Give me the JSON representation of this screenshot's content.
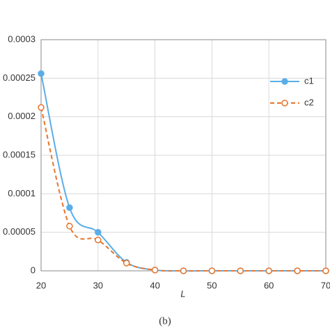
{
  "chart_data": {
    "type": "line",
    "caption": "(b)",
    "x_label": "L",
    "x": [
      20,
      25,
      30,
      35,
      40,
      45,
      50,
      55,
      60,
      65,
      70
    ],
    "series": [
      {
        "name": "c1",
        "color": "#5aaee8",
        "marker": "filled",
        "dash": false,
        "values": [
          0.000256,
          8.2e-05,
          5e-05,
          1.1e-05,
          1e-06,
          0,
          0,
          0,
          0,
          0,
          0
        ]
      },
      {
        "name": "c2",
        "color": "#e8742a",
        "marker": "open",
        "dash": true,
        "values": [
          0.000212,
          5.8e-05,
          4e-05,
          1e-05,
          1e-06,
          0,
          0,
          0,
          0,
          0,
          0
        ]
      }
    ],
    "xlim": [
      20,
      70
    ],
    "xticks": [
      20,
      30,
      40,
      50,
      60,
      70
    ],
    "ylim": [
      0,
      0.0003
    ],
    "yticks": [
      0,
      5e-05,
      0.0001,
      0.00015,
      0.0002,
      0.00025,
      0.0003
    ],
    "grid": true,
    "legend": "top-right"
  }
}
